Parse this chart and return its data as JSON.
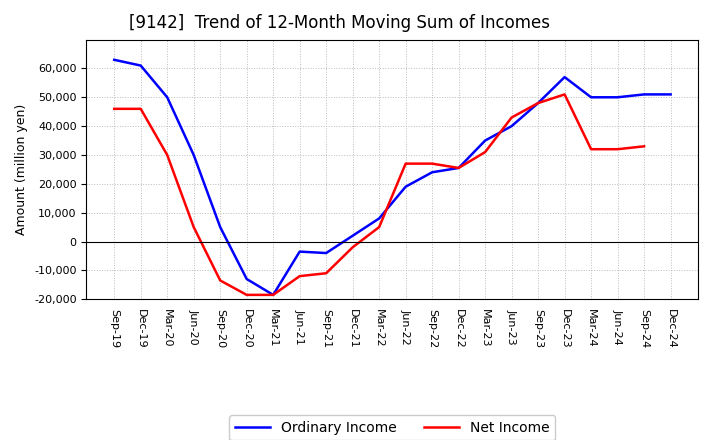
{
  "title": "[9142]  Trend of 12-Month Moving Sum of Incomes",
  "ylabel": "Amount (million yen)",
  "x_labels": [
    "Sep-19",
    "Dec-19",
    "Mar-20",
    "Jun-20",
    "Sep-20",
    "Dec-20",
    "Mar-21",
    "Jun-21",
    "Sep-21",
    "Dec-21",
    "Mar-22",
    "Jun-22",
    "Sep-22",
    "Dec-22",
    "Mar-23",
    "Jun-23",
    "Sep-23",
    "Dec-23",
    "Mar-24",
    "Jun-24",
    "Sep-24",
    "Dec-24"
  ],
  "ordinary_income": [
    63000,
    61000,
    50000,
    30000,
    5000,
    -13000,
    -18500,
    -3500,
    -4000,
    2000,
    8000,
    19000,
    24000,
    25500,
    35000,
    40000,
    48000,
    57000,
    50000,
    50000,
    51000,
    51000
  ],
  "net_income": [
    46000,
    46000,
    30000,
    5000,
    -13500,
    -18500,
    -18500,
    -12000,
    -11000,
    -2000,
    5000,
    27000,
    27000,
    25500,
    31000,
    43000,
    48000,
    51000,
    32000,
    32000,
    33000,
    null
  ],
  "ordinary_income_color": "#0000FF",
  "net_income_color": "#FF0000",
  "ylim": [
    -20000,
    70000
  ],
  "yticks": [
    -20000,
    -10000,
    0,
    10000,
    20000,
    30000,
    40000,
    50000,
    60000
  ],
  "background_color": "#FFFFFF",
  "grid_color": "#AAAAAA",
  "title_fontsize": 12,
  "label_fontsize": 9,
  "tick_fontsize": 8,
  "legend_labels": [
    "Ordinary Income",
    "Net Income"
  ],
  "line_width": 1.8
}
